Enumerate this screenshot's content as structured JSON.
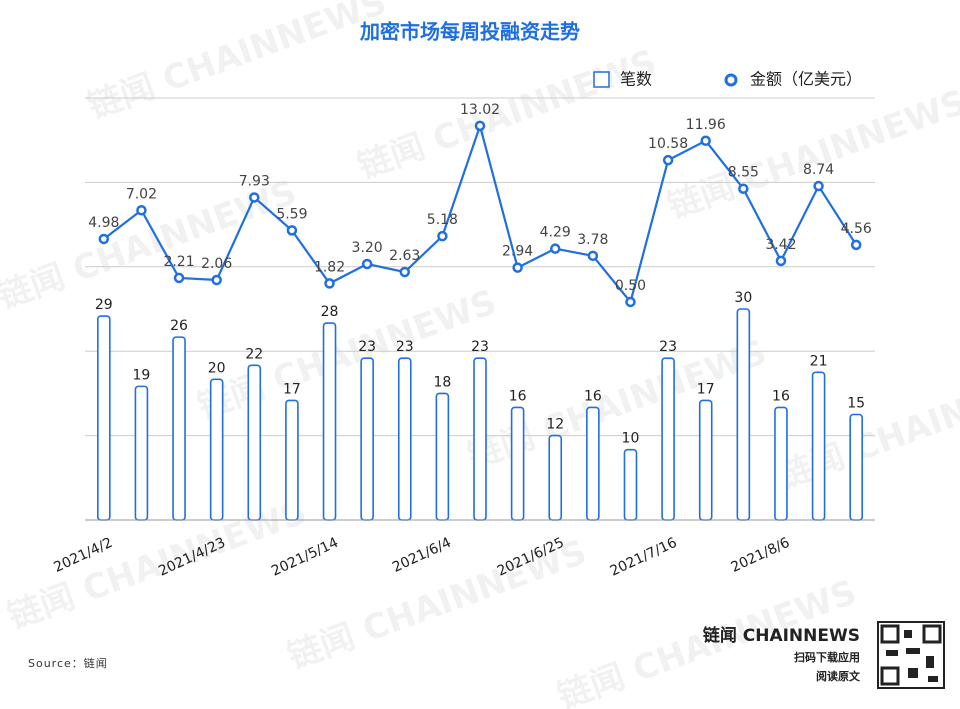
{
  "chart_data": {
    "type": "bar_line",
    "title": "加密市场每周投融资走势",
    "categories": [
      "2021/4/2",
      null,
      null,
      "2021/4/23",
      null,
      null,
      "2021/5/14",
      null,
      null,
      "2021/6/4",
      null,
      null,
      "2021/6/25",
      null,
      null,
      "2021/7/16",
      null,
      null,
      "2021/8/6",
      null,
      null
    ],
    "series": [
      {
        "name": "笔数",
        "color": "#1f6fe0",
        "values": [
          29,
          19,
          26,
          20,
          22,
          17,
          28,
          23,
          23,
          18,
          23,
          16,
          12,
          16,
          10,
          23,
          17,
          30,
          16,
          21,
          15
        ]
      },
      {
        "name": "金额（亿美元）",
        "color": "#1f6fe0",
        "axis": "y2",
        "values": [
          4.98,
          7.02,
          2.21,
          2.06,
          7.93,
          5.59,
          1.82,
          3.2,
          2.63,
          5.18,
          13.02,
          2.94,
          4.29,
          3.78,
          0.5,
          10.58,
          11.96,
          8.55,
          3.42,
          8.74,
          4.56
        ],
        "value_labels": [
          "4.98",
          "7.02",
          "2.21",
          "2.06",
          "7.93",
          "5.59",
          "1.82",
          "3.20",
          "2.63",
          "5.18",
          "13.02",
          "2.94",
          "4.29",
          "3.78",
          "0.50",
          "10.58",
          "11.96",
          "8.55",
          "3.42",
          "8.74",
          "4.56"
        ]
      }
    ],
    "ylim": [
      0,
      60
    ],
    "yticks": [
      0,
      12,
      24,
      36,
      48,
      60
    ],
    "y2lim": [
      -15,
      15
    ],
    "grid": true
  },
  "watermark": "链闻 CHAINNEWS",
  "footer": {
    "source": "Source：链闻",
    "brand": "链闻 CHAINNEWS",
    "line1": "扫码下载应用",
    "line2": "阅读原文"
  }
}
